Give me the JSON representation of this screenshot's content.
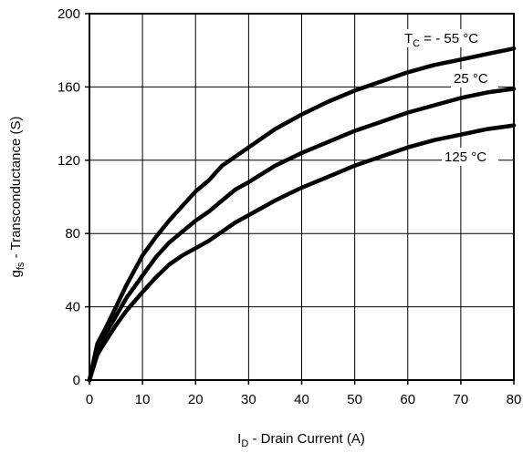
{
  "chart_data": {
    "type": "line",
    "title": "",
    "xlabel": {
      "main": "I",
      "sub": "D",
      "rest": " - Drain Current (A)"
    },
    "ylabel": {
      "main": "g",
      "sub": "fs",
      "rest": " - Transconductance (S)"
    },
    "xlim": [
      0,
      80
    ],
    "ylim": [
      0,
      200
    ],
    "xticks": [
      0,
      10,
      20,
      30,
      40,
      50,
      60,
      70,
      80
    ],
    "yticks": [
      0,
      40,
      80,
      120,
      160,
      200
    ],
    "grid": true,
    "series": [
      {
        "name": "T_C = -55 °C",
        "label": {
          "main": "T",
          "sub": "C",
          "rest": " = - 55 °C"
        },
        "points": [
          [
            0,
            0
          ],
          [
            1.5,
            20
          ],
          [
            3,
            28
          ],
          [
            5,
            40
          ],
          [
            7,
            52
          ],
          [
            10,
            68
          ],
          [
            12.5,
            78
          ],
          [
            15,
            87
          ],
          [
            17.5,
            95
          ],
          [
            20,
            103
          ],
          [
            22.5,
            109
          ],
          [
            25,
            117
          ],
          [
            27.5,
            122
          ],
          [
            30,
            127
          ],
          [
            35,
            137
          ],
          [
            40,
            145
          ],
          [
            45,
            152
          ],
          [
            50,
            158
          ],
          [
            55,
            163
          ],
          [
            60,
            168
          ],
          [
            65,
            172
          ],
          [
            70,
            175
          ],
          [
            75,
            178
          ],
          [
            80,
            181
          ]
        ]
      },
      {
        "name": "25 °C",
        "label": {
          "main": "25 °C",
          "sub": "",
          "rest": ""
        },
        "points": [
          [
            0,
            0
          ],
          [
            1.5,
            18
          ],
          [
            3,
            25
          ],
          [
            5,
            35
          ],
          [
            7,
            45
          ],
          [
            10,
            57
          ],
          [
            12.5,
            67
          ],
          [
            15,
            75
          ],
          [
            17.5,
            81
          ],
          [
            20,
            87
          ],
          [
            22.5,
            92
          ],
          [
            25,
            98
          ],
          [
            27.5,
            104
          ],
          [
            30,
            108
          ],
          [
            35,
            117
          ],
          [
            40,
            124
          ],
          [
            45,
            130
          ],
          [
            50,
            136
          ],
          [
            55,
            141
          ],
          [
            60,
            146
          ],
          [
            65,
            150
          ],
          [
            70,
            154
          ],
          [
            75,
            157
          ],
          [
            80,
            159
          ]
        ]
      },
      {
        "name": "125 °C",
        "label": {
          "main": "125 °C",
          "sub": "",
          "rest": ""
        },
        "points": [
          [
            0,
            0
          ],
          [
            1.5,
            14
          ],
          [
            3,
            21
          ],
          [
            5,
            30
          ],
          [
            7,
            38
          ],
          [
            10,
            48
          ],
          [
            12.5,
            56
          ],
          [
            15,
            63
          ],
          [
            17.5,
            68
          ],
          [
            20,
            72
          ],
          [
            22.5,
            76
          ],
          [
            25,
            81
          ],
          [
            27.5,
            86
          ],
          [
            30,
            90
          ],
          [
            35,
            98
          ],
          [
            40,
            105
          ],
          [
            45,
            111
          ],
          [
            50,
            117
          ],
          [
            55,
            122
          ],
          [
            60,
            127
          ],
          [
            65,
            131
          ],
          [
            70,
            134
          ],
          [
            75,
            137
          ],
          [
            80,
            139
          ]
        ]
      }
    ]
  }
}
